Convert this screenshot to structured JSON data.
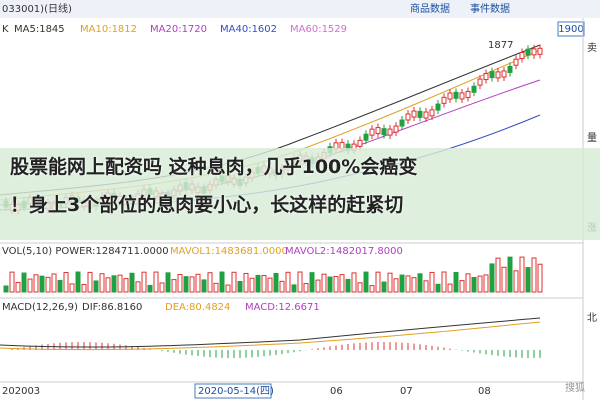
{
  "header": {
    "code": "033001)(日线)",
    "tabs": [
      "商品数据",
      "事件数据"
    ]
  },
  "legend": [
    "K",
    "MA5:1845",
    "MA10:1812",
    "MA20:1720",
    "MA40:1602",
    "MA60:1529"
  ],
  "price": {
    "scale_top": "1900",
    "peak": "1877"
  },
  "sidebar": [
    "卖",
    "量",
    "涨",
    "北"
  ],
  "volume": [
    "VOL(5,10) POWER:1284711.0000",
    "MAVOL1:1483681.0000",
    "MAVOL2:1482017.8000"
  ],
  "macd": [
    "MACD(12,26,9)",
    "DIF:86.8160",
    "DEA:80.4824",
    "MACD:12.6671"
  ],
  "axis": [
    "202003",
    "2020-05-14(四)",
    "06",
    "07",
    "08"
  ],
  "banner": [
    "股票能网上配资吗 这种息肉，几乎100%会癌变",
    "！身上3个部位的息肉要小心，长这样的赶紧切"
  ],
  "watermark": "搜狐"
}
